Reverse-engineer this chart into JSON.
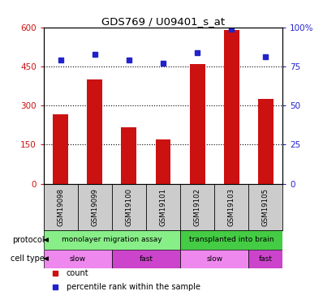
{
  "title": "GDS769 / U09401_s_at",
  "samples": [
    "GSM19098",
    "GSM19099",
    "GSM19100",
    "GSM19101",
    "GSM19102",
    "GSM19103",
    "GSM19105"
  ],
  "counts": [
    265,
    400,
    215,
    170,
    460,
    590,
    325
  ],
  "percentiles": [
    79,
    83,
    79,
    77,
    84,
    99,
    81
  ],
  "ylim_left": [
    0,
    600
  ],
  "ylim_right": [
    0,
    100
  ],
  "yticks_left": [
    0,
    150,
    300,
    450,
    600
  ],
  "yticks_right": [
    0,
    25,
    50,
    75,
    100
  ],
  "bar_color": "#cc1111",
  "dot_color": "#2222cc",
  "protocol_groups": [
    {
      "label": "monolayer migration assay",
      "start": 0,
      "end": 4,
      "color": "#88ee88"
    },
    {
      "label": "transplanted into brain",
      "start": 4,
      "end": 7,
      "color": "#44cc44"
    }
  ],
  "cell_type_groups": [
    {
      "label": "slow",
      "start": 0,
      "end": 2,
      "color": "#ee88ee"
    },
    {
      "label": "fast",
      "start": 2,
      "end": 4,
      "color": "#cc44cc"
    },
    {
      "label": "slow",
      "start": 4,
      "end": 6,
      "color": "#ee88ee"
    },
    {
      "label": "fast",
      "start": 6,
      "end": 7,
      "color": "#cc44cc"
    }
  ],
  "legend_items": [
    {
      "label": "count",
      "color": "#cc1111"
    },
    {
      "label": "percentile rank within the sample",
      "color": "#2222cc"
    }
  ],
  "left_axis_color": "#cc1111",
  "right_axis_color": "#2222cc",
  "background_color": "#ffffff",
  "sample_bg": "#cccccc",
  "bar_width": 0.45
}
